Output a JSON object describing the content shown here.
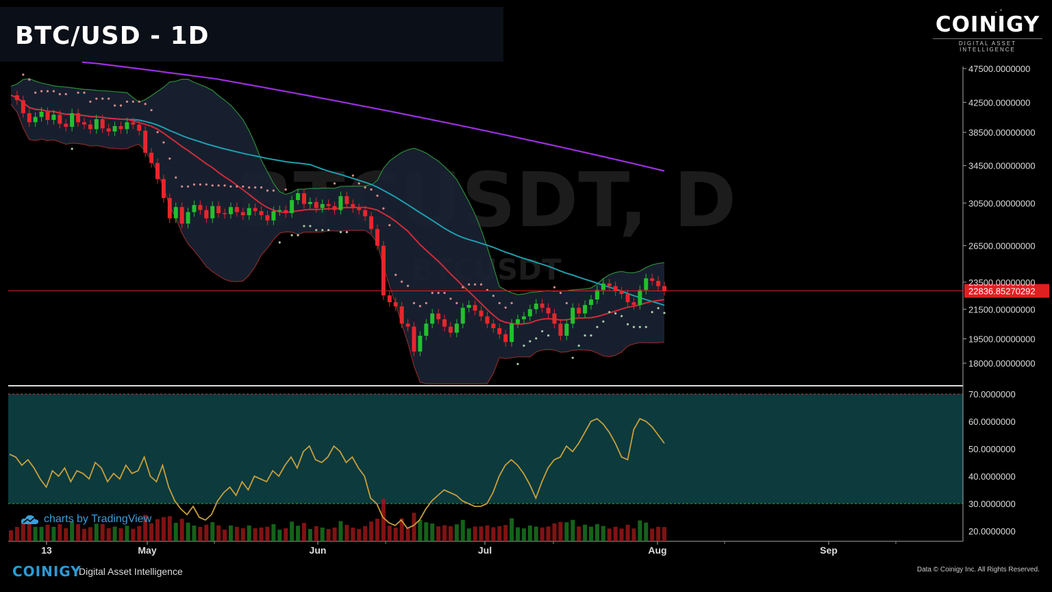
{
  "header": {
    "title": "BTC/USD - 1D"
  },
  "brand": {
    "name": "COINIGY",
    "tagline": "DIGITAL ASSET INTELLIGENCE"
  },
  "footer": {
    "logo": "COINIGY",
    "tagline": "Digital Asset Intelligence",
    "credit": "Data © Coinigy Inc.  All Rights Reserved."
  },
  "watermark": {
    "main": "BTCUSDT, D",
    "sub": "BTCUSDT"
  },
  "tradingview": {
    "label": "charts by TradingView"
  },
  "colors": {
    "up": "#22c02e",
    "down": "#e8262c",
    "ma200": "#9b30e0",
    "ma50": "#1e9fb0",
    "ma20": "#d12b3a",
    "bollinger_fill": "#1a2233",
    "bollinger_line": "#2e8b3a",
    "rsi": "#c8a03c",
    "rsi_band": "#0c3a3d",
    "price_line": "#e02020"
  },
  "chart_data": [
    {
      "type": "line",
      "title": "BTC/USD - 1D",
      "yscale": "log",
      "ylim": [
        17000,
        48500
      ],
      "y_ticks": [
        "47500.0000000",
        "42500.0000000",
        "38500.00000000",
        "34500.00000000",
        "30500.00000000",
        "26500.00000000",
        "23500.00000000",
        "21500.00000000",
        "19500.00000000",
        "18000.00000000"
      ],
      "y_tick_values": [
        47500,
        42500,
        38500,
        34500,
        30500,
        26500,
        23500,
        21500,
        19500,
        18000
      ],
      "x_ticks": [
        "13",
        "May",
        "Jun",
        "Jul",
        "Aug",
        "Sep"
      ],
      "current_price_label": "22836.85270292",
      "current_price": 22836.85,
      "series": [
        {
          "role": "price",
          "values": [
            43500,
            42800,
            41000,
            39800,
            40500,
            41200,
            40100,
            40800,
            39600,
            39200,
            41000,
            39800,
            39500,
            38900,
            40200,
            39000,
            38600,
            39300,
            38900,
            39800,
            39500,
            38700,
            36000,
            34800,
            33000,
            31000,
            29000,
            30100,
            28500,
            29600,
            30300,
            29800,
            29000,
            30200,
            29500,
            29400,
            30100,
            29600,
            29300,
            30000,
            29700,
            29300,
            28800,
            29700,
            29800,
            29500,
            30800,
            31500,
            30400,
            30600,
            30000,
            30400,
            30200,
            29800,
            31200,
            30400,
            30000,
            29800,
            29200,
            28000,
            26500,
            22500,
            22000,
            21700,
            20500,
            20300,
            18700,
            19700,
            20500,
            21200,
            20800,
            20300,
            19900,
            20500,
            21600,
            21800,
            21400,
            21000,
            20500,
            20200,
            19800,
            19300,
            20500,
            20800,
            21000,
            21500,
            21900,
            21600,
            21200,
            20500,
            19700,
            20500,
            21600,
            21200,
            21800,
            22200,
            22900,
            23400,
            23200,
            22800,
            22600,
            22000,
            21800,
            22900,
            23800,
            23600,
            23200,
            22836
          ]
        },
        {
          "role": "ma200",
          "values": [
            48500,
            48300,
            48000,
            47700,
            47400,
            47100,
            46800,
            46500,
            46200,
            45900,
            45500,
            45100,
            44700,
            44300,
            43900,
            43500,
            43100,
            42700,
            42300,
            41900,
            41500,
            41100,
            40700,
            40300,
            39900,
            39500,
            39100,
            38700,
            38300,
            37900,
            37500,
            37100,
            36700,
            36300,
            35900,
            35500,
            35100,
            34700,
            34300,
            33900
          ]
        },
        {
          "role": "rsi",
          "values": [
            48,
            47,
            44,
            46,
            43,
            39,
            36,
            42,
            40,
            43,
            38,
            42,
            41,
            39,
            45,
            43,
            38,
            41,
            39,
            44,
            41,
            42,
            47,
            40,
            38,
            44,
            36,
            31,
            28,
            26,
            29,
            25,
            24,
            26,
            31,
            34,
            36,
            33,
            38,
            35,
            40,
            39,
            38,
            42,
            40,
            44,
            47,
            43,
            49,
            51,
            46,
            45,
            47,
            51,
            49,
            45,
            47,
            43,
            40,
            32,
            30,
            25,
            23,
            22,
            24,
            21,
            22,
            24,
            28,
            31,
            33,
            35,
            34,
            33,
            31,
            30,
            29,
            29,
            30,
            34,
            40,
            44,
            46,
            44,
            41,
            37,
            32,
            38,
            43,
            46,
            47,
            51,
            49,
            52,
            56,
            60,
            61,
            59,
            56,
            52,
            47,
            46,
            57,
            61,
            60,
            58,
            55,
            52
          ],
          "ylim": [
            17,
            72
          ],
          "y_ticks": [
            "70.0000000",
            "60.0000000",
            "50.0000000",
            "40.0000000",
            "30.0000000",
            "20.0000000"
          ],
          "y_tick_values": [
            70,
            60,
            50,
            40,
            30,
            20
          ]
        }
      ]
    }
  ]
}
